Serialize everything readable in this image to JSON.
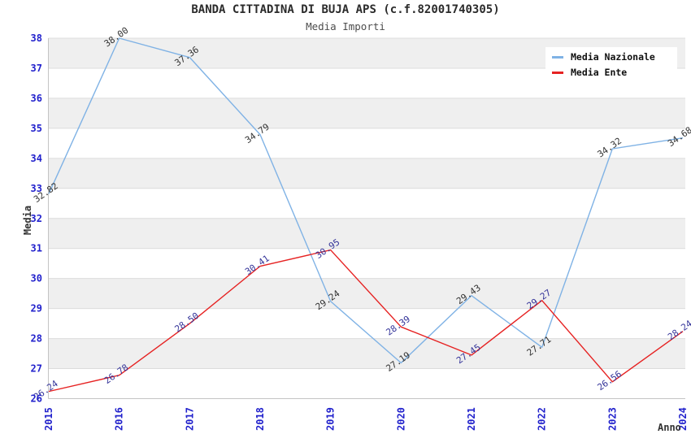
{
  "chart_data": {
    "type": "line",
    "title": "BANDA CITTADINA DI BUJA APS (c.f.82001740305)",
    "subtitle": "Media Importi",
    "xlabel": "Anno",
    "ylabel": "Media",
    "categories": [
      "2015",
      "2016",
      "2017",
      "2018",
      "2019",
      "2020",
      "2021",
      "2022",
      "2023",
      "2024"
    ],
    "ylim": [
      26,
      38
    ],
    "ytick_interval": 1,
    "grid": "horizontal-bands",
    "legend_position": "top-right",
    "series": [
      {
        "name": "Media Nazionale",
        "color": "#7fb2e5",
        "label_color": "#333333",
        "values": [
          32.82,
          38.0,
          37.36,
          34.79,
          29.24,
          27.19,
          29.43,
          27.71,
          34.32,
          34.68
        ]
      },
      {
        "name": "Media Ente",
        "color": "#e62222",
        "label_color": "#333399",
        "values": [
          26.24,
          26.78,
          28.5,
          30.41,
          30.95,
          28.39,
          27.45,
          29.27,
          26.56,
          28.24
        ]
      }
    ],
    "styles": {
      "band_color": "#efefef",
      "alt_band_color": "#ffffff",
      "gridline_color": "#dcdcdc",
      "axis_line_color": "#c4c4c4",
      "tick_label_color": "#2222cc",
      "label_decimals": 2
    }
  }
}
